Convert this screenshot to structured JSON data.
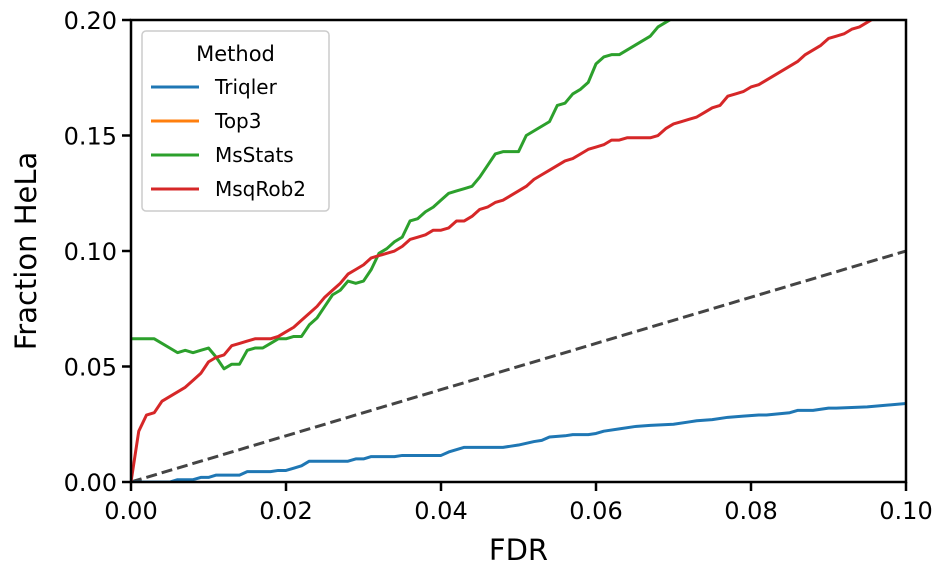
{
  "chart_data": {
    "type": "line",
    "xlabel": "FDR",
    "ylabel": "Fraction HeLa",
    "xlim": [
      0.0,
      0.1
    ],
    "ylim": [
      0.0,
      0.2
    ],
    "xticks": [
      "0.00",
      "0.02",
      "0.04",
      "0.06",
      "0.08",
      "0.10"
    ],
    "yticks": [
      "0.00",
      "0.05",
      "0.10",
      "0.15",
      "0.20"
    ],
    "grid": false,
    "legend": {
      "title": "Method",
      "position": "top-left"
    },
    "reference_line": {
      "style": "dashed",
      "color": "#444444",
      "x": [
        0.0,
        0.1
      ],
      "y": [
        0.0,
        0.1
      ]
    },
    "series": [
      {
        "name": "Triqler",
        "color": "#1f77b4",
        "x": [
          0.0,
          0.005,
          0.006,
          0.008,
          0.009,
          0.01,
          0.011,
          0.012,
          0.014,
          0.015,
          0.018,
          0.019,
          0.02,
          0.021,
          0.022,
          0.023,
          0.025,
          0.028,
          0.029,
          0.03,
          0.031,
          0.034,
          0.035,
          0.04,
          0.041,
          0.043,
          0.048,
          0.049,
          0.05,
          0.052,
          0.053,
          0.054,
          0.056,
          0.057,
          0.059,
          0.06,
          0.061,
          0.063,
          0.065,
          0.067,
          0.07,
          0.072,
          0.073,
          0.075,
          0.077,
          0.079,
          0.081,
          0.082,
          0.085,
          0.086,
          0.088,
          0.089,
          0.09,
          0.091,
          0.095,
          0.1
        ],
        "y": [
          0.0,
          0.0,
          0.001,
          0.001,
          0.002,
          0.002,
          0.003,
          0.003,
          0.003,
          0.0045,
          0.0045,
          0.005,
          0.005,
          0.006,
          0.007,
          0.009,
          0.009,
          0.009,
          0.01,
          0.01,
          0.011,
          0.011,
          0.0115,
          0.0115,
          0.013,
          0.015,
          0.015,
          0.0155,
          0.016,
          0.0175,
          0.018,
          0.0195,
          0.02,
          0.0205,
          0.0205,
          0.021,
          0.022,
          0.023,
          0.024,
          0.0245,
          0.025,
          0.026,
          0.0265,
          0.027,
          0.028,
          0.0285,
          0.029,
          0.029,
          0.03,
          0.031,
          0.031,
          0.0315,
          0.032,
          0.032,
          0.0325,
          0.034
        ]
      },
      {
        "name": "Top3",
        "color": "#ff7f0e",
        "x": [],
        "y": []
      },
      {
        "name": "MsStats",
        "color": "#2ca02c",
        "x": [
          0.0,
          0.003,
          0.005,
          0.006,
          0.007,
          0.008,
          0.009,
          0.01,
          0.011,
          0.012,
          0.013,
          0.014,
          0.015,
          0.016,
          0.017,
          0.018,
          0.019,
          0.02,
          0.021,
          0.022,
          0.023,
          0.024,
          0.025,
          0.026,
          0.027,
          0.028,
          0.029,
          0.03,
          0.031,
          0.032,
          0.033,
          0.034,
          0.035,
          0.036,
          0.037,
          0.038,
          0.039,
          0.04,
          0.041,
          0.042,
          0.043,
          0.044,
          0.045,
          0.046,
          0.047,
          0.048,
          0.049,
          0.05,
          0.051,
          0.052,
          0.053,
          0.054,
          0.055,
          0.056,
          0.057,
          0.058,
          0.059,
          0.06,
          0.061,
          0.062,
          0.063,
          0.064,
          0.065,
          0.066,
          0.067,
          0.068,
          0.069,
          0.07
        ],
        "y": [
          0.062,
          0.062,
          0.058,
          0.056,
          0.057,
          0.056,
          0.057,
          0.058,
          0.054,
          0.049,
          0.051,
          0.051,
          0.057,
          0.058,
          0.058,
          0.06,
          0.062,
          0.062,
          0.063,
          0.063,
          0.068,
          0.071,
          0.076,
          0.081,
          0.083,
          0.087,
          0.086,
          0.087,
          0.092,
          0.099,
          0.101,
          0.104,
          0.106,
          0.113,
          0.114,
          0.117,
          0.119,
          0.122,
          0.125,
          0.126,
          0.127,
          0.128,
          0.132,
          0.137,
          0.142,
          0.143,
          0.143,
          0.143,
          0.15,
          0.152,
          0.154,
          0.156,
          0.163,
          0.164,
          0.168,
          0.17,
          0.173,
          0.181,
          0.184,
          0.185,
          0.185,
          0.187,
          0.189,
          0.191,
          0.193,
          0.197,
          0.199,
          0.201
        ]
      },
      {
        "name": "MsqRob2",
        "color": "#d62728",
        "x": [
          0.0,
          0.001,
          0.002,
          0.003,
          0.004,
          0.005,
          0.006,
          0.007,
          0.008,
          0.009,
          0.01,
          0.011,
          0.012,
          0.013,
          0.014,
          0.015,
          0.016,
          0.017,
          0.018,
          0.019,
          0.02,
          0.021,
          0.022,
          0.023,
          0.024,
          0.025,
          0.026,
          0.027,
          0.028,
          0.029,
          0.03,
          0.031,
          0.032,
          0.033,
          0.034,
          0.035,
          0.036,
          0.037,
          0.038,
          0.039,
          0.04,
          0.041,
          0.042,
          0.043,
          0.044,
          0.045,
          0.046,
          0.047,
          0.048,
          0.049,
          0.05,
          0.051,
          0.052,
          0.053,
          0.054,
          0.055,
          0.056,
          0.057,
          0.058,
          0.059,
          0.06,
          0.061,
          0.062,
          0.063,
          0.064,
          0.065,
          0.066,
          0.067,
          0.068,
          0.069,
          0.07,
          0.071,
          0.072,
          0.073,
          0.074,
          0.075,
          0.076,
          0.077,
          0.078,
          0.079,
          0.08,
          0.081,
          0.082,
          0.083,
          0.084,
          0.085,
          0.086,
          0.087,
          0.088,
          0.089,
          0.09,
          0.091,
          0.092,
          0.093,
          0.094,
          0.095,
          0.096
        ],
        "y": [
          0.0,
          0.022,
          0.029,
          0.03,
          0.035,
          0.037,
          0.039,
          0.041,
          0.044,
          0.047,
          0.052,
          0.054,
          0.055,
          0.059,
          0.06,
          0.061,
          0.062,
          0.062,
          0.062,
          0.063,
          0.065,
          0.067,
          0.07,
          0.073,
          0.076,
          0.08,
          0.083,
          0.086,
          0.09,
          0.092,
          0.094,
          0.097,
          0.098,
          0.099,
          0.1,
          0.102,
          0.105,
          0.106,
          0.107,
          0.109,
          0.109,
          0.11,
          0.113,
          0.113,
          0.115,
          0.118,
          0.119,
          0.121,
          0.122,
          0.124,
          0.126,
          0.128,
          0.131,
          0.133,
          0.135,
          0.137,
          0.139,
          0.14,
          0.142,
          0.144,
          0.145,
          0.146,
          0.148,
          0.148,
          0.149,
          0.149,
          0.149,
          0.149,
          0.15,
          0.153,
          0.155,
          0.156,
          0.157,
          0.158,
          0.16,
          0.162,
          0.163,
          0.167,
          0.168,
          0.169,
          0.171,
          0.172,
          0.174,
          0.176,
          0.178,
          0.18,
          0.182,
          0.185,
          0.187,
          0.189,
          0.192,
          0.193,
          0.194,
          0.196,
          0.197,
          0.199,
          0.201
        ]
      }
    ]
  }
}
